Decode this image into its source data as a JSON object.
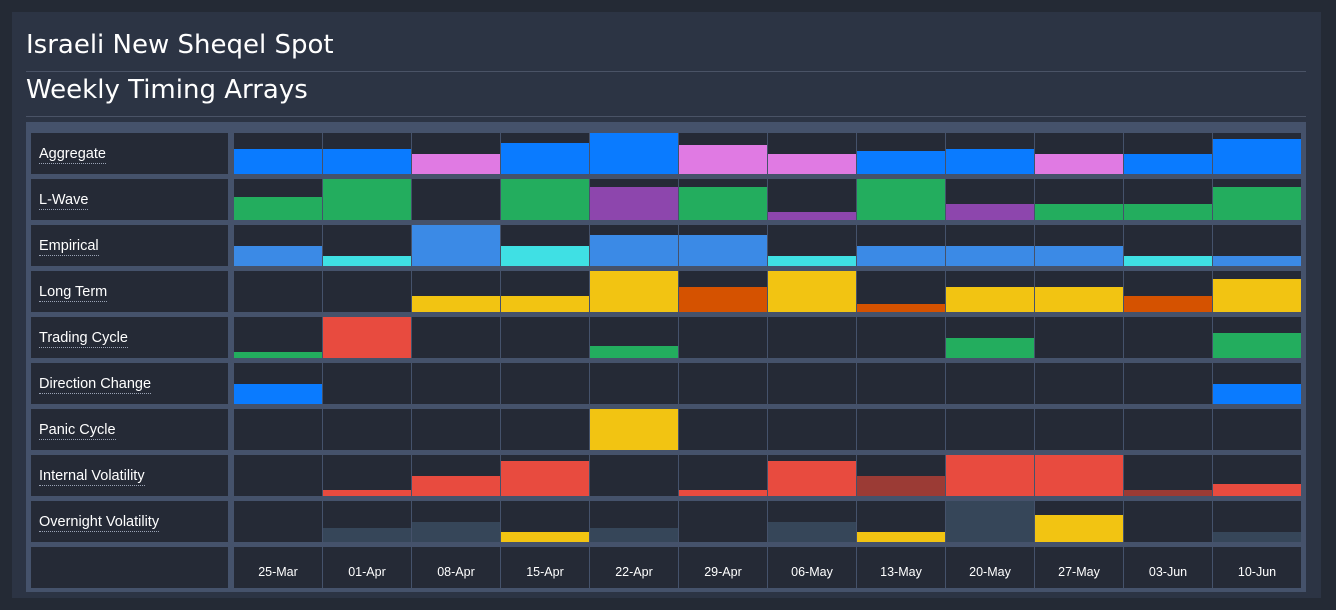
{
  "header": {
    "title": "Israeli New Sheqel Spot",
    "subtitle": "Weekly Timing Arrays"
  },
  "chart_data": {
    "type": "heatmap",
    "categories": [
      "25-Mar",
      "01-Apr",
      "08-Apr",
      "15-Apr",
      "22-Apr",
      "29-Apr",
      "06-May",
      "13-May",
      "20-May",
      "27-May",
      "03-Jun",
      "10-Jun"
    ],
    "value_scale": [
      0,
      1
    ],
    "palette": {
      "blue": "#0a7bff",
      "pink": "#e07ae3",
      "green": "#23ad5e",
      "purple": "#8d46ad",
      "lightblue": "#3b8ae6",
      "cyan": "#3fe0e4",
      "yellow": "#f2c412",
      "orange": "#d55200",
      "red": "#e84b3f",
      "darkred": "#9b3b35",
      "slate": "#364659",
      "empty": "#252a36"
    },
    "series": [
      {
        "name": "Aggregate",
        "values": [
          0.6,
          0.6,
          0.5,
          0.75,
          1.0,
          0.7,
          0.5,
          0.55,
          0.6,
          0.5,
          0.5,
          0.85
        ],
        "colors": [
          "blue",
          "blue",
          "pink",
          "blue",
          "blue",
          "pink",
          "pink",
          "blue",
          "blue",
          "pink",
          "blue",
          "blue"
        ]
      },
      {
        "name": "L-Wave",
        "values": [
          0.55,
          1.0,
          0,
          1.0,
          0.8,
          0.8,
          0.2,
          1.0,
          0.4,
          0.4,
          0.4,
          0.8
        ],
        "colors": [
          "green",
          "green",
          "empty",
          "green",
          "purple",
          "green",
          "purple",
          "green",
          "purple",
          "green",
          "green",
          "green"
        ]
      },
      {
        "name": "Empirical",
        "values": [
          0.5,
          0.25,
          1.0,
          0.5,
          0.75,
          0.75,
          0.25,
          0.5,
          0.5,
          0.5,
          0.25,
          0.25
        ],
        "colors": [
          "lightblue",
          "cyan",
          "lightblue",
          "cyan",
          "lightblue",
          "lightblue",
          "cyan",
          "lightblue",
          "lightblue",
          "lightblue",
          "cyan",
          "lightblue"
        ]
      },
      {
        "name": "Long Term",
        "values": [
          0,
          0,
          0.4,
          0.4,
          1.0,
          0.6,
          1.0,
          0.2,
          0.6,
          0.6,
          0.4,
          0.8
        ],
        "colors": [
          "empty",
          "empty",
          "yellow",
          "yellow",
          "yellow",
          "orange",
          "yellow",
          "orange",
          "yellow",
          "yellow",
          "orange",
          "yellow"
        ]
      },
      {
        "name": "Trading Cycle",
        "values": [
          0.15,
          1.0,
          0,
          0,
          0.3,
          0,
          0,
          0,
          0.5,
          0,
          0,
          0.6
        ],
        "colors": [
          "green",
          "red",
          "empty",
          "empty",
          "green",
          "empty",
          "empty",
          "empty",
          "green",
          "empty",
          "empty",
          "green"
        ]
      },
      {
        "name": "Direction Change",
        "values": [
          0.5,
          0,
          0,
          0,
          0,
          0,
          0,
          0,
          0,
          0,
          0,
          0.5
        ],
        "colors": [
          "blue",
          "empty",
          "empty",
          "empty",
          "empty",
          "empty",
          "empty",
          "empty",
          "empty",
          "empty",
          "empty",
          "blue"
        ]
      },
      {
        "name": "Panic Cycle",
        "values": [
          0,
          0,
          0,
          0,
          1.0,
          0,
          0,
          0,
          0,
          0,
          0,
          0
        ],
        "colors": [
          "empty",
          "empty",
          "empty",
          "empty",
          "yellow",
          "empty",
          "empty",
          "empty",
          "empty",
          "empty",
          "empty",
          "empty"
        ]
      },
      {
        "name": "Internal Volatility",
        "values": [
          0,
          0.15,
          0.5,
          0.85,
          0,
          0.15,
          0.85,
          0.5,
          1.0,
          1.0,
          0.15,
          0.3
        ],
        "colors": [
          "empty",
          "red",
          "red",
          "red",
          "empty",
          "red",
          "red",
          "darkred",
          "red",
          "red",
          "darkred",
          "red"
        ]
      },
      {
        "name": "Overnight Volatility",
        "values": [
          0,
          0.35,
          0.5,
          0.25,
          0.35,
          0,
          0.5,
          0.25,
          1.0,
          0.65,
          0,
          0.25
        ],
        "colors": [
          "empty",
          "slate",
          "slate",
          "yellow",
          "slate",
          "empty",
          "slate",
          "yellow",
          "slate",
          "yellow",
          "empty",
          "slate"
        ]
      }
    ]
  }
}
